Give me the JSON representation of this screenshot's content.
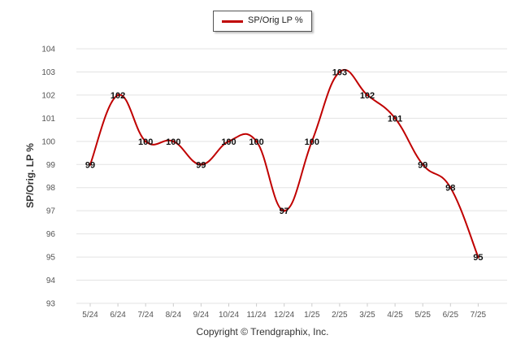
{
  "colors": {
    "series": "#c00000",
    "grid": "#e3e3e3",
    "axis": "#cccccc"
  },
  "footer": "Copyright © Trendgraphix, Inc.",
  "chart_data": {
    "type": "line",
    "title": "",
    "xlabel": "",
    "ylabel": "SP/Orig. LP %",
    "ylim": [
      93,
      104
    ],
    "yticks": [
      93,
      94,
      95,
      96,
      97,
      98,
      99,
      100,
      101,
      102,
      103,
      104
    ],
    "grid": true,
    "legend_position": "top-center",
    "categories": [
      "5/24",
      "6/24",
      "7/24",
      "8/24",
      "9/24",
      "10/24",
      "11/24",
      "12/24",
      "1/25",
      "2/25",
      "3/25",
      "4/25",
      "5/25",
      "6/25",
      "7/25"
    ],
    "series": [
      {
        "name": "SP/Orig LP %",
        "values": [
          99,
          102,
          100,
          100,
          99,
          100,
          100,
          97,
          100,
          103,
          102,
          101,
          99,
          98,
          95
        ],
        "labels": [
          "99",
          "102",
          "100",
          "100",
          "99",
          "100",
          "100",
          "97",
          "100",
          "103",
          "102",
          "101",
          "99",
          "98",
          "95"
        ]
      }
    ]
  }
}
